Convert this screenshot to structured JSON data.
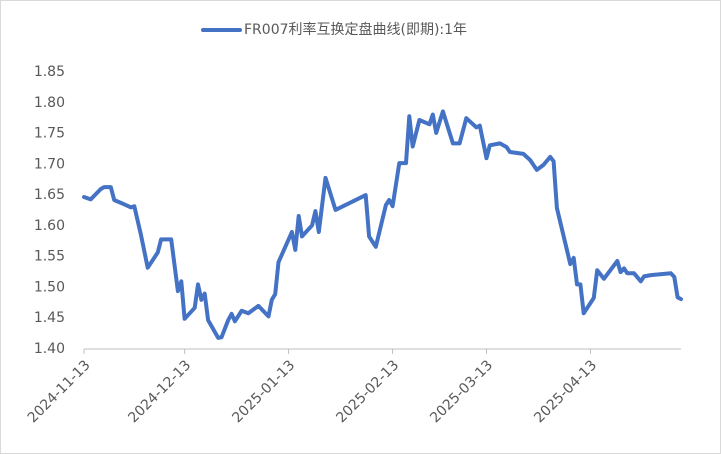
{
  "chart_data": {
    "type": "line",
    "legend": "top",
    "grid": false,
    "series": [
      {
        "name": "FR007利率互换定盘曲线(即期):1年",
        "color": "#4472c4",
        "values": [
          1.647,
          1.643,
          1.66,
          1.663,
          1.663,
          1.642,
          1.635,
          1.63,
          1.632,
          1.585,
          1.532,
          1.557,
          1.578,
          1.578,
          1.494,
          1.51,
          1.449,
          1.467,
          1.505,
          1.48,
          1.49,
          1.447,
          1.418,
          1.419,
          1.447,
          1.457,
          1.445,
          1.462,
          1.458,
          1.47,
          1.453,
          1.48,
          1.489,
          1.541,
          1.59,
          1.561,
          1.616,
          1.583,
          1.601,
          1.624,
          1.59,
          1.678,
          1.626,
          1.65,
          1.583,
          1.566,
          1.634,
          1.642,
          1.632,
          1.702,
          1.702,
          1.778,
          1.729,
          1.772,
          1.765,
          1.781,
          1.751,
          1.786,
          1.734,
          1.734,
          1.775,
          1.76,
          1.763,
          1.71,
          1.731,
          1.734,
          1.728,
          1.72,
          1.717,
          1.707,
          1.691,
          1.699,
          1.712,
          1.705,
          1.629,
          1.538,
          1.548,
          1.505,
          1.505,
          1.458,
          1.483,
          1.528,
          1.514,
          1.543,
          1.525,
          1.531,
          1.523,
          1.523,
          1.51,
          1.518,
          1.52,
          1.523,
          1.517,
          1.484,
          1.481
        ]
      }
    ],
    "x": [
      "2024-11-13",
      "2024-11-15",
      "2024-11-18",
      "2024-11-19",
      "2024-11-21",
      "2024-11-22",
      "2024-11-25",
      "2024-11-27",
      "2024-11-28",
      "2024-11-30",
      "2024-12-02",
      "2024-12-05",
      "2024-12-06",
      "2024-12-09",
      "2024-12-11",
      "2024-12-12",
      "2024-12-13",
      "2024-12-16",
      "2024-12-17",
      "2024-12-18",
      "2024-12-19",
      "2024-12-20",
      "2024-12-23",
      "2024-12-24",
      "2024-12-26",
      "2024-12-27",
      "2024-12-28",
      "2024-12-30",
      "2025-01-01",
      "2025-01-04",
      "2025-01-07",
      "2025-01-08",
      "2025-01-09",
      "2025-01-10",
      "2025-01-14",
      "2025-01-15",
      "2025-01-16",
      "2025-01-17",
      "2025-01-20",
      "2025-01-21",
      "2025-01-22",
      "2025-01-24",
      "2025-01-27",
      "2025-02-05",
      "2025-02-06",
      "2025-02-08",
      "2025-02-11",
      "2025-02-12",
      "2025-02-13",
      "2025-02-15",
      "2025-02-17",
      "2025-02-18",
      "2025-02-19",
      "2025-02-21",
      "2025-02-24",
      "2025-02-25",
      "2025-02-26",
      "2025-02-28",
      "2025-03-03",
      "2025-03-05",
      "2025-03-07",
      "2025-03-10",
      "2025-03-11",
      "2025-03-13",
      "2025-03-14",
      "2025-03-17",
      "2025-03-19",
      "2025-03-20",
      "2025-03-24",
      "2025-03-26",
      "2025-03-28",
      "2025-03-30",
      "2025-04-01",
      "2025-04-02",
      "2025-04-03",
      "2025-04-07",
      "2025-04-08",
      "2025-04-09",
      "2025-04-10",
      "2025-04-11",
      "2025-04-14",
      "2025-04-15",
      "2025-04-17",
      "2025-04-21",
      "2025-04-22",
      "2025-04-23",
      "2025-04-24",
      "2025-04-26",
      "2025-04-28",
      "2025-04-29",
      "2025-05-01",
      "2025-05-07",
      "2025-05-08",
      "2025-05-09",
      "2025-05-10"
    ],
    "xlim": [
      "2024-11-13",
      "2025-05-10"
    ],
    "xticks": [
      "2024-11-13",
      "2024-12-13",
      "2025-01-13",
      "2025-02-13",
      "2025-03-13",
      "2025-04-13"
    ],
    "ylim": [
      1.4,
      1.85
    ],
    "yticks": [
      {
        "value": 1.4,
        "label": "1.40"
      },
      {
        "value": 1.45,
        "label": "1.45"
      },
      {
        "value": 1.5,
        "label": "1.50"
      },
      {
        "value": 1.55,
        "label": "1.55"
      },
      {
        "value": 1.6,
        "label": "1.60"
      },
      {
        "value": 1.65,
        "label": "1.65"
      },
      {
        "value": 1.7,
        "label": "1.70"
      },
      {
        "value": 1.75,
        "label": "1.75"
      },
      {
        "value": 1.8,
        "label": "1.80"
      },
      {
        "value": 1.85,
        "label": "1.85"
      }
    ]
  }
}
